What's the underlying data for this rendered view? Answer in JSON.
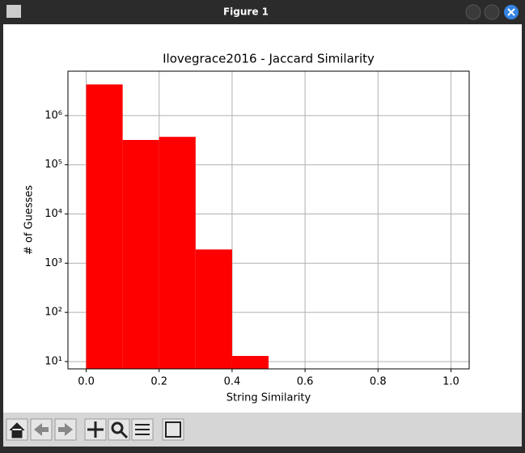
{
  "window": {
    "title": "Figure 1"
  },
  "chart_data": {
    "type": "histogram",
    "title": "Ilovegrace2016 - Jaccard Similarity",
    "xlabel": "String Similarity",
    "ylabel": "# of Guesses",
    "bins": [
      0,
      0.1,
      0.2,
      0.3,
      0.4,
      0.5
    ],
    "counts": [
      4300000,
      320000,
      370000,
      1900,
      13
    ],
    "color": "#ff0000",
    "xlim": [
      -0.05,
      1.05
    ],
    "xticks": [
      {
        "value": 0,
        "label": "0.0"
      },
      0.2,
      0.4,
      0.6,
      0.8,
      {
        "value": 1,
        "label": "1.0"
      }
    ],
    "ylim": [
      7.1,
      8000000
    ],
    "log_y": true,
    "yticks": [
      {
        "value": 10,
        "label": "10¹"
      },
      {
        "value": 100,
        "label": "10²"
      },
      {
        "value": 1000,
        "label": "10³"
      },
      {
        "value": 10000,
        "label": "10⁴"
      },
      {
        "value": 100000,
        "label": "10⁵"
      },
      {
        "value": 1000000,
        "label": "10⁶"
      }
    ],
    "grid": true
  }
}
